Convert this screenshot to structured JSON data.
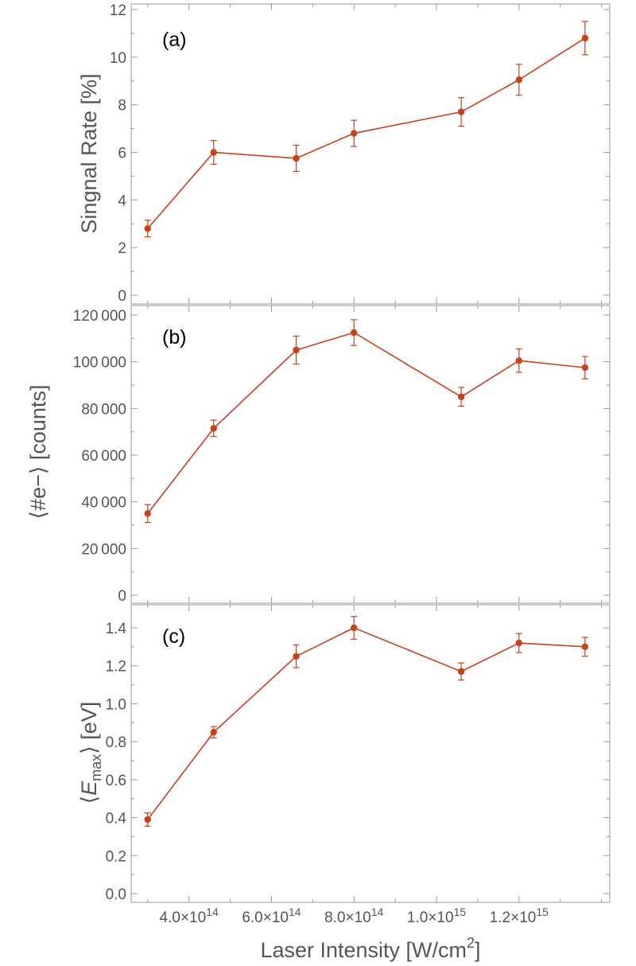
{
  "colors": {
    "series": "#c8411b",
    "axis": "#9a9a9a",
    "text": "#555555"
  },
  "x_axis": {
    "label_prefix": "Laser Intensity [W/cm",
    "label_sup": "2",
    "label_suffix": "]",
    "range": [
      260000000000000.0,
      1420000000000000.0
    ],
    "ticks": [
      {
        "value": 400000000000000.0,
        "mant": "4.0",
        "base": "×10",
        "exp": "14"
      },
      {
        "value": 600000000000000.0,
        "mant": "6.0",
        "base": "×10",
        "exp": "14"
      },
      {
        "value": 800000000000000.0,
        "mant": "8.0",
        "base": "×10",
        "exp": "14"
      },
      {
        "value": 1000000000000000.0,
        "mant": "1.0",
        "base": "×10",
        "exp": "15"
      },
      {
        "value": 1200000000000000.0,
        "mant": "1.2",
        "base": "×10",
        "exp": "15"
      }
    ]
  },
  "chart_data": [
    {
      "type": "line",
      "panel": "(a)",
      "ylabel": "Singnal Rate [%]",
      "ylim": [
        0,
        12
      ],
      "yticks": [
        0,
        2,
        4,
        6,
        8,
        10,
        12
      ],
      "ytick_labels": [
        "0",
        "2",
        "4",
        "6",
        "8",
        "10",
        "12"
      ],
      "ymin_ticks": [
        1,
        3,
        5,
        7,
        9,
        11
      ],
      "x": [
        300000000000000.0,
        460000000000000.0,
        660000000000000.0,
        800000000000000.0,
        1060000000000000.0,
        1200000000000000.0,
        1360000000000000.0
      ],
      "y": [
        2.8,
        6.0,
        5.75,
        6.8,
        7.7,
        9.05,
        10.8
      ],
      "err": [
        0.35,
        0.5,
        0.55,
        0.55,
        0.6,
        0.65,
        0.7
      ]
    },
    {
      "type": "line",
      "panel": "(b)",
      "ylabel": "⟨#e−⟩ [counts]",
      "ylim": [
        0,
        120000
      ],
      "yticks": [
        0,
        20000,
        40000,
        60000,
        80000,
        100000,
        120000
      ],
      "ytick_labels": [
        "0",
        "20 000",
        "40 000",
        "60 000",
        "80 000",
        "100 000",
        "120 000"
      ],
      "ymin_ticks": [
        10000,
        30000,
        50000,
        70000,
        90000,
        110000
      ],
      "x": [
        300000000000000.0,
        460000000000000.0,
        660000000000000.0,
        800000000000000.0,
        1060000000000000.0,
        1200000000000000.0,
        1360000000000000.0
      ],
      "y": [
        35000,
        71500,
        105000,
        112500,
        85000,
        100500,
        97500
      ],
      "err": [
        3800,
        3500,
        6000,
        5500,
        4000,
        5000,
        4800
      ]
    },
    {
      "type": "line",
      "panel": "(c)",
      "ylabel_open": "⟨",
      "ylabel_var": "E",
      "ylabel_sub": "max",
      "ylabel_close": "⟩ [eV]",
      "ylim": [
        0,
        1.4
      ],
      "yticks": [
        0,
        0.2,
        0.4,
        0.6,
        0.8,
        1.0,
        1.2,
        1.4
      ],
      "ytick_labels": [
        "0.0",
        "0.2",
        "0.4",
        "0.6",
        "0.8",
        "1.0",
        "1.2",
        "1.4"
      ],
      "ymin_ticks": [
        0.1,
        0.3,
        0.5,
        0.7,
        0.9,
        1.1,
        1.3
      ],
      "x": [
        300000000000000.0,
        460000000000000.0,
        660000000000000.0,
        800000000000000.0,
        1060000000000000.0,
        1200000000000000.0,
        1360000000000000.0
      ],
      "y": [
        0.39,
        0.85,
        1.25,
        1.4,
        1.17,
        1.32,
        1.3
      ],
      "err": [
        0.035,
        0.03,
        0.06,
        0.06,
        0.045,
        0.05,
        0.05
      ]
    }
  ]
}
